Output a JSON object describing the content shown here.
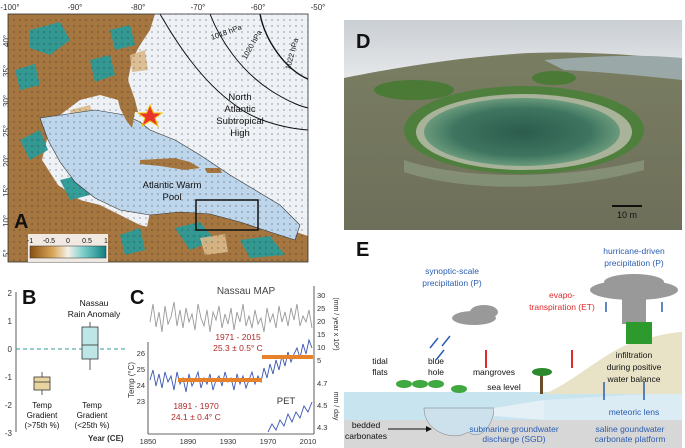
{
  "panelA": {
    "letter": "A",
    "lon_ticks": [
      "-100°",
      "-90°",
      "-80°",
      "-70°",
      "-60°",
      "-50°"
    ],
    "lat_ticks": [
      "40°",
      "35°",
      "30°",
      "25°",
      "20°",
      "15°",
      "10°",
      "5°"
    ],
    "isobars": [
      "1018 hPa",
      "1020 hPa",
      "1022 hPa"
    ],
    "high_label": [
      "North",
      "Atlantic",
      "Subtropical",
      "High"
    ],
    "pool_label": [
      "Atlantic Warm",
      "Pool"
    ],
    "colorbar_ticks": [
      "-1",
      "-0.5",
      "0",
      "0.5",
      "1"
    ],
    "colors": {
      "ocean": "#e9eef3",
      "pool": "#bdd6ec",
      "land_dry": "#9a6a35",
      "land_wet": "#2c9a96",
      "star": "#e8342a"
    }
  },
  "panelB": {
    "letter": "B",
    "title": [
      "Nassau",
      "Rain Anomaly"
    ],
    "yticks": [
      "2",
      "1",
      "0",
      "-1",
      "-2",
      "-3"
    ],
    "box_labels": [
      [
        "Temp",
        "Gradient",
        "(>75th %)"
      ],
      [
        "Temp",
        "Gradient",
        "(<25th %)"
      ]
    ],
    "colors": {
      "box1": "#e8d4a0",
      "box2": "#bfe6e6",
      "zero": "#2c9a96"
    }
  },
  "panelC": {
    "letter": "C",
    "map_title": "Nassau MAP",
    "right_axis_top_label": "(mm / year x 10²)",
    "right_axis_top_ticks": [
      "30",
      "25",
      "20",
      "15",
      "10",
      "5"
    ],
    "left_axis_label": "Temp (°C)",
    "left_axis_ticks": [
      "26",
      "25",
      "24",
      "23"
    ],
    "right_axis_bottom_label": "mm / day",
    "right_axis_bottom_ticks": [
      "4.7",
      "4.5",
      "4.3"
    ],
    "xlabel": "Year (CE)",
    "xticks": [
      "1850",
      "1890",
      "1930",
      "1970",
      "2010"
    ],
    "period1_label": "1971 - 2015",
    "period1_value": "25.3 ± 0.5° C",
    "period2_label": "1891 - 1970",
    "period2_value": "24.1 ± 0.4° C",
    "pet_label": "PET",
    "colors": {
      "map": "#999999",
      "temp": "#3a55b0",
      "mean": "#e8822a",
      "text": "#b02a2a"
    }
  },
  "panelD": {
    "letter": "D",
    "scale_label": "10 m"
  },
  "panelE": {
    "letter": "E",
    "labels": {
      "hurricane": [
        "hurricane-driven",
        "precipitation (P)"
      ],
      "synoptic": [
        "synoptic-scale",
        "precipitation (P)"
      ],
      "evapo": [
        "evapo-",
        "transpiration (ET)"
      ],
      "tidal": [
        "tidal",
        "flats"
      ],
      "blue_hole": [
        "blue",
        "hole"
      ],
      "mangroves": "mangroves",
      "sea_level": "sea level",
      "infiltration": [
        "infiltration",
        "during positive",
        "water balance"
      ],
      "meteoric": "meteoric lens",
      "bedded": [
        "bedded",
        "carbonates"
      ],
      "sgd": [
        "submarine groundwater",
        "discharge (SGD)"
      ],
      "saline": [
        "saline goundwater",
        "carbonate platform"
      ]
    },
    "colors": {
      "blue": "#2a5db0",
      "red": "#e02a2a"
    }
  }
}
